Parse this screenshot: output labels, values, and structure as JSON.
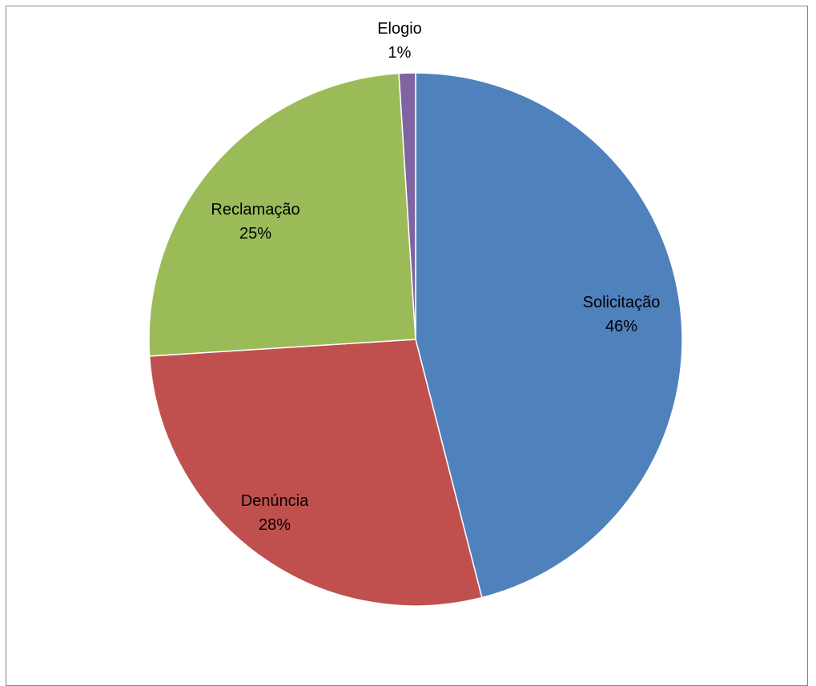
{
  "chart_data": {
    "type": "pie",
    "slices": [
      {
        "label": "Solicitação",
        "value": 46,
        "percent_label": "46%",
        "color": "#4F81BD"
      },
      {
        "label": "Denúncia",
        "value": 28,
        "percent_label": "28%",
        "color": "#C0504D"
      },
      {
        "label": "Reclamação",
        "value": 25,
        "percent_label": "25%",
        "color": "#9BBB59"
      },
      {
        "label": "Elogio",
        "value": 1,
        "percent_label": "1%",
        "color": "#8064A2"
      }
    ],
    "start": "12 o'clock",
    "direction": "clockwise",
    "legend": "none",
    "data_labels": "category name and percent"
  }
}
